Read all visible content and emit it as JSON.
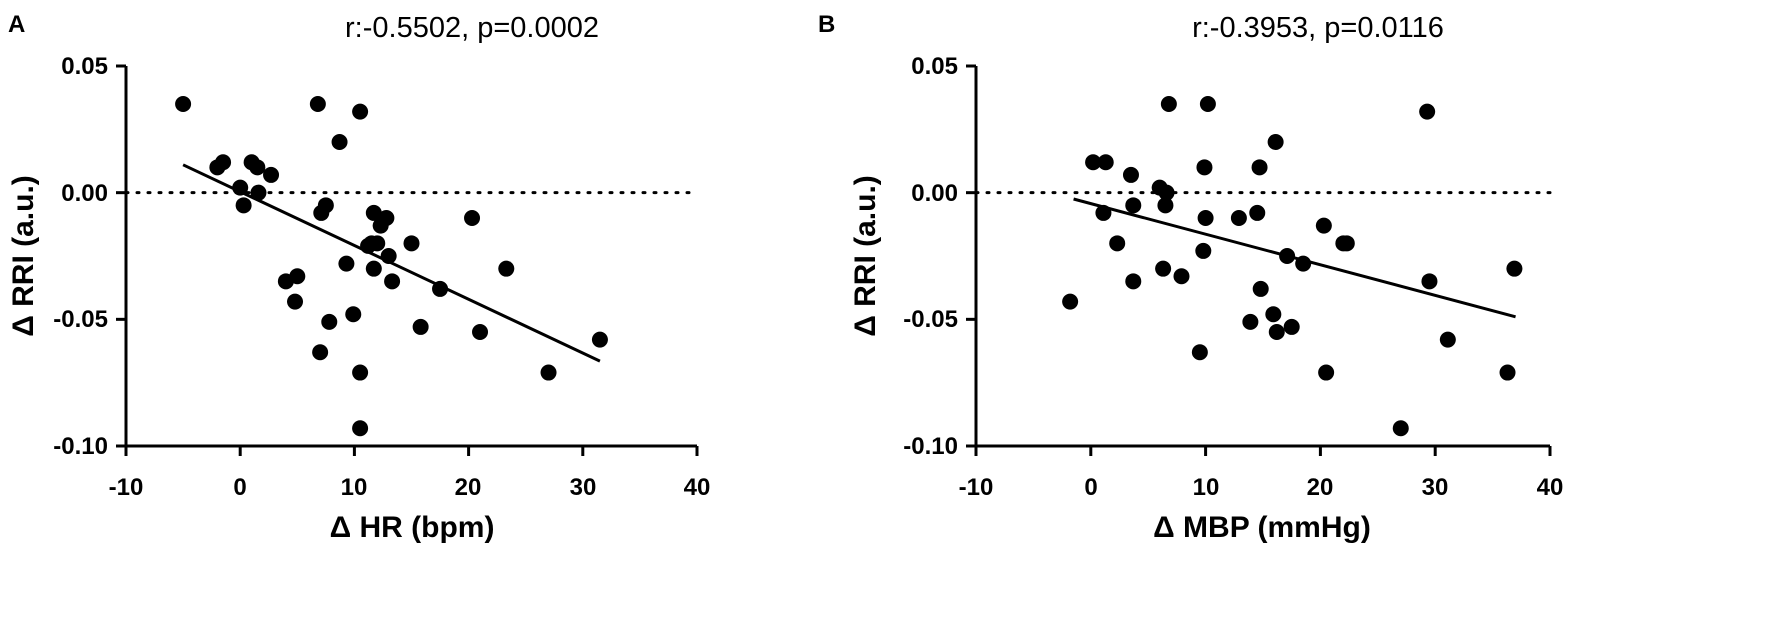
{
  "chart_data": [
    {
      "type": "scatter",
      "panel_label": "A",
      "title": "r:-0.5502, p=0.0002",
      "xlabel": "Δ HR (bpm)",
      "ylabel": "Δ RRI (a.u.)",
      "xlim": [
        -10,
        40
      ],
      "ylim": [
        -0.1,
        0.05
      ],
      "x_ticks": [
        -10,
        0,
        10,
        20,
        30,
        40
      ],
      "x_tick_labels": [
        "-10",
        "0",
        "10",
        "20",
        "30",
        "40"
      ],
      "y_ticks": [
        0.05,
        0.0,
        -0.05,
        -0.1
      ],
      "y_tick_labels": [
        "0.05",
        "0.00",
        "-0.05",
        "-0.10"
      ],
      "reference_line_y": 0.0,
      "regression_line": {
        "x": [
          -5,
          31.5
        ],
        "y": [
          0.011,
          -0.0665
        ]
      },
      "grid": false,
      "points": [
        {
          "x": -5,
          "y": 0.035
        },
        {
          "x": -2,
          "y": 0.01
        },
        {
          "x": -1.5,
          "y": 0.012
        },
        {
          "x": 0,
          "y": 0.002
        },
        {
          "x": 0.3,
          "y": -0.005
        },
        {
          "x": 1,
          "y": 0.012
        },
        {
          "x": 1.5,
          "y": 0.01
        },
        {
          "x": 1.6,
          "y": 0.0
        },
        {
          "x": 2.7,
          "y": 0.007
        },
        {
          "x": 4,
          "y": -0.035
        },
        {
          "x": 4.8,
          "y": -0.043
        },
        {
          "x": 5,
          "y": -0.033
        },
        {
          "x": 6.8,
          "y": 0.035
        },
        {
          "x": 7,
          "y": -0.063
        },
        {
          "x": 7.1,
          "y": -0.008
        },
        {
          "x": 7.5,
          "y": -0.005
        },
        {
          "x": 7.8,
          "y": -0.051
        },
        {
          "x": 8.7,
          "y": 0.02
        },
        {
          "x": 9.3,
          "y": -0.028
        },
        {
          "x": 9.9,
          "y": -0.048
        },
        {
          "x": 10.5,
          "y": 0.032
        },
        {
          "x": 10.5,
          "y": -0.071
        },
        {
          "x": 10.5,
          "y": -0.093
        },
        {
          "x": 11.2,
          "y": -0.021
        },
        {
          "x": 11.5,
          "y": -0.02
        },
        {
          "x": 11.7,
          "y": -0.008
        },
        {
          "x": 11.7,
          "y": -0.03
        },
        {
          "x": 12,
          "y": -0.02
        },
        {
          "x": 12.3,
          "y": -0.013
        },
        {
          "x": 12.8,
          "y": -0.01
        },
        {
          "x": 13,
          "y": -0.025
        },
        {
          "x": 13.3,
          "y": -0.035
        },
        {
          "x": 15,
          "y": -0.02
        },
        {
          "x": 15.8,
          "y": -0.053
        },
        {
          "x": 17.5,
          "y": -0.038
        },
        {
          "x": 20.3,
          "y": -0.01
        },
        {
          "x": 21,
          "y": -0.055
        },
        {
          "x": 23.3,
          "y": -0.03
        },
        {
          "x": 27,
          "y": -0.071
        },
        {
          "x": 31.5,
          "y": -0.058
        }
      ]
    },
    {
      "type": "scatter",
      "panel_label": "B",
      "title": "r:-0.3953, p=0.0116",
      "xlabel": "Δ MBP (mmHg)",
      "ylabel": "Δ RRI (a.u.)",
      "xlim": [
        -10,
        40
      ],
      "ylim": [
        -0.1,
        0.05
      ],
      "x_ticks": [
        -10,
        0,
        10,
        20,
        30,
        40
      ],
      "x_tick_labels": [
        "-10",
        "0",
        "10",
        "20",
        "30",
        "40"
      ],
      "y_ticks": [
        0.05,
        0.0,
        -0.05,
        -0.1
      ],
      "y_tick_labels": [
        "0.05",
        "0.00",
        "-0.05",
        "-0.10"
      ],
      "reference_line_y": 0.0,
      "regression_line": {
        "x": [
          -1.5,
          37
        ],
        "y": [
          -0.0025,
          -0.049
        ]
      },
      "grid": false,
      "points": [
        {
          "x": -1.8,
          "y": -0.043
        },
        {
          "x": 0.2,
          "y": 0.012
        },
        {
          "x": 1.1,
          "y": -0.008
        },
        {
          "x": 1.3,
          "y": 0.012
        },
        {
          "x": 2.3,
          "y": -0.02
        },
        {
          "x": 3.5,
          "y": 0.007
        },
        {
          "x": 3.7,
          "y": -0.005
        },
        {
          "x": 3.7,
          "y": -0.035
        },
        {
          "x": 6,
          "y": 0.002
        },
        {
          "x": 6.3,
          "y": -0.03
        },
        {
          "x": 6.5,
          "y": -0.005
        },
        {
          "x": 6.6,
          "y": 0.0
        },
        {
          "x": 6.8,
          "y": 0.035
        },
        {
          "x": 7.9,
          "y": -0.033
        },
        {
          "x": 9.5,
          "y": -0.063
        },
        {
          "x": 9.8,
          "y": -0.023
        },
        {
          "x": 9.9,
          "y": 0.01
        },
        {
          "x": 10,
          "y": -0.01
        },
        {
          "x": 10.2,
          "y": 0.035
        },
        {
          "x": 12.9,
          "y": -0.01
        },
        {
          "x": 13.9,
          "y": -0.051
        },
        {
          "x": 14.5,
          "y": -0.008
        },
        {
          "x": 14.7,
          "y": 0.01
        },
        {
          "x": 14.8,
          "y": -0.038
        },
        {
          "x": 15.9,
          "y": -0.048
        },
        {
          "x": 16.1,
          "y": 0.02
        },
        {
          "x": 16.2,
          "y": -0.055
        },
        {
          "x": 17.1,
          "y": -0.025
        },
        {
          "x": 17.5,
          "y": -0.053
        },
        {
          "x": 18.5,
          "y": -0.028
        },
        {
          "x": 20.3,
          "y": -0.013
        },
        {
          "x": 20.5,
          "y": -0.071
        },
        {
          "x": 22,
          "y": -0.02
        },
        {
          "x": 22.3,
          "y": -0.02
        },
        {
          "x": 27,
          "y": -0.093
        },
        {
          "x": 29.3,
          "y": 0.032
        },
        {
          "x": 29.5,
          "y": -0.035
        },
        {
          "x": 31.1,
          "y": -0.058
        },
        {
          "x": 36.3,
          "y": -0.071
        },
        {
          "x": 36.9,
          "y": -0.03
        }
      ]
    }
  ]
}
